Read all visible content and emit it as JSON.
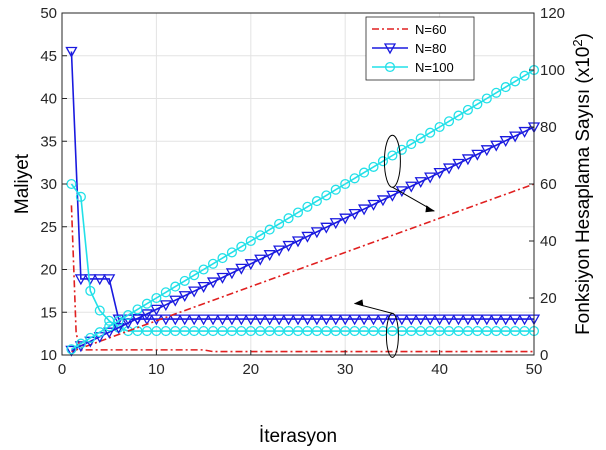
{
  "chart_data": {
    "type": "line",
    "xlabel": "İterasyon",
    "ylabel": "Maliyet",
    "y2label": "Fonksiyon Hesaplama Sayısı (x10",
    "y2label_exponent": "2",
    "y2label_close": ")",
    "xlim": [
      0,
      50
    ],
    "ylim": [
      10,
      50
    ],
    "y2lim": [
      0,
      120
    ],
    "xticks": [
      "0",
      "10",
      "20",
      "30",
      "40",
      "50"
    ],
    "yticks": [
      "10",
      "15",
      "20",
      "25",
      "30",
      "35",
      "40",
      "45",
      "50"
    ],
    "y2ticks": [
      "0",
      "20",
      "40",
      "60",
      "80",
      "100",
      "120"
    ],
    "grid": true,
    "legend_position": "top-right",
    "series": [
      {
        "name": "N=60",
        "color": "#e02020",
        "dash": "dash-dot",
        "marker": "none",
        "axis": "left",
        "x": [
          1,
          1.5,
          2,
          5,
          10,
          15,
          16,
          20,
          30,
          40,
          50
        ],
        "y": [
          27.5,
          12.5,
          10.6,
          10.6,
          10.6,
          10.6,
          10.4,
          10.4,
          10.4,
          10.4,
          10.4
        ]
      },
      {
        "name": "N=80",
        "color": "#1a1adf",
        "dash": "solid",
        "marker": "triangle-down",
        "axis": "left",
        "x": [
          1,
          2,
          3,
          4,
          5,
          6,
          7,
          8,
          9,
          10,
          11,
          12,
          13,
          14,
          15,
          16,
          17,
          18,
          19,
          20,
          21,
          22,
          23,
          24,
          25,
          26,
          27,
          28,
          29,
          30,
          31,
          32,
          33,
          34,
          35,
          36,
          37,
          38,
          39,
          40,
          41,
          42,
          43,
          44,
          45,
          46,
          47,
          48,
          49,
          50
        ],
        "y": [
          45.5,
          18.9,
          18.9,
          18.9,
          18.9,
          14.2,
          14.2,
          14.2,
          14.2,
          14.2,
          14.2,
          14.2,
          14.2,
          14.2,
          14.2,
          14.2,
          14.2,
          14.2,
          14.2,
          14.2,
          14.2,
          14.2,
          14.2,
          14.2,
          14.2,
          14.2,
          14.2,
          14.2,
          14.2,
          14.2,
          14.2,
          14.2,
          14.2,
          14.2,
          14.2,
          14.2,
          14.2,
          14.2,
          14.2,
          14.2,
          14.2,
          14.2,
          14.2,
          14.2,
          14.2,
          14.2,
          14.2,
          14.2,
          14.2,
          14.2
        ]
      },
      {
        "name": "N=100",
        "color": "#22e0e8",
        "dash": "solid",
        "marker": "circle",
        "axis": "left",
        "x": [
          1,
          2,
          3,
          4,
          5,
          6,
          7,
          8,
          9,
          10,
          11,
          12,
          13,
          14,
          15,
          16,
          17,
          18,
          19,
          20,
          21,
          22,
          23,
          24,
          25,
          26,
          27,
          28,
          29,
          30,
          31,
          32,
          33,
          34,
          35,
          36,
          37,
          38,
          39,
          40,
          41,
          42,
          43,
          44,
          45,
          46,
          47,
          48,
          49,
          50
        ],
        "y": [
          30,
          28.5,
          17.5,
          15.2,
          14,
          13.2,
          12.8,
          12.8,
          12.8,
          12.8,
          12.8,
          12.8,
          12.8,
          12.8,
          12.8,
          12.8,
          12.8,
          12.8,
          12.8,
          12.8,
          12.8,
          12.8,
          12.8,
          12.8,
          12.8,
          12.8,
          12.8,
          12.8,
          12.8,
          12.8,
          12.8,
          12.8,
          12.8,
          12.8,
          12.8,
          12.8,
          12.8,
          12.8,
          12.8,
          12.8,
          12.8,
          12.8,
          12.8,
          12.8,
          12.8,
          12.8,
          12.8,
          12.8,
          12.8,
          12.8
        ]
      },
      {
        "name": "N=60",
        "color": "#e02020",
        "dash": "dash-dot",
        "marker": "none",
        "axis": "right",
        "x": [
          1,
          50
        ],
        "y": [
          1.2,
          60
        ]
      },
      {
        "name": "N=80",
        "color": "#1a1adf",
        "dash": "solid",
        "marker": "triangle-down",
        "axis": "right",
        "x": [
          1,
          2,
          3,
          4,
          5,
          6,
          7,
          8,
          9,
          10,
          11,
          12,
          13,
          14,
          15,
          16,
          17,
          18,
          19,
          20,
          21,
          22,
          23,
          24,
          25,
          26,
          27,
          28,
          29,
          30,
          31,
          32,
          33,
          34,
          35,
          36,
          37,
          38,
          39,
          40,
          41,
          42,
          43,
          44,
          45,
          46,
          47,
          48,
          49,
          50
        ],
        "y": [
          1.6,
          3.2,
          4.8,
          6.4,
          8,
          9.6,
          11.2,
          12.8,
          14.4,
          16,
          17.6,
          19.2,
          20.8,
          22.4,
          24,
          25.6,
          27.2,
          28.8,
          30.4,
          32,
          33.6,
          35.2,
          36.8,
          38.4,
          40,
          41.6,
          43.2,
          44.8,
          46.4,
          48,
          49.6,
          51.2,
          52.8,
          54.4,
          56,
          57.6,
          59.2,
          60.8,
          62.4,
          64,
          65.6,
          67.2,
          68.8,
          70.4,
          72,
          73.6,
          75.2,
          76.8,
          78.4,
          80
        ]
      },
      {
        "name": "N=100",
        "color": "#22e0e8",
        "dash": "solid",
        "marker": "circle",
        "axis": "right",
        "x": [
          1,
          2,
          3,
          4,
          5,
          6,
          7,
          8,
          9,
          10,
          11,
          12,
          13,
          14,
          15,
          16,
          17,
          18,
          19,
          20,
          21,
          22,
          23,
          24,
          25,
          26,
          27,
          28,
          29,
          30,
          31,
          32,
          33,
          34,
          35,
          36,
          37,
          38,
          39,
          40,
          41,
          42,
          43,
          44,
          45,
          46,
          47,
          48,
          49,
          50
        ],
        "y": [
          2,
          4,
          6,
          8,
          10,
          12,
          14,
          16,
          18,
          20,
          22,
          24,
          26,
          28,
          30,
          32,
          34,
          36,
          38,
          40,
          42,
          44,
          46,
          48,
          50,
          52,
          54,
          56,
          58,
          60,
          62,
          64,
          66,
          68,
          70,
          72,
          74,
          76,
          78,
          80,
          82,
          84,
          86,
          88,
          90,
          92,
          94,
          96,
          98,
          100
        ]
      }
    ],
    "annotations": [
      {
        "shape": "ellipse",
        "cx": 35,
        "cy_right": 68,
        "note": "groups rising lines, arrow points to right axis"
      },
      {
        "shape": "ellipse",
        "cx": 35,
        "cy_left": 12.3,
        "note": "groups flat lines, arrow points to left axis"
      }
    ]
  }
}
